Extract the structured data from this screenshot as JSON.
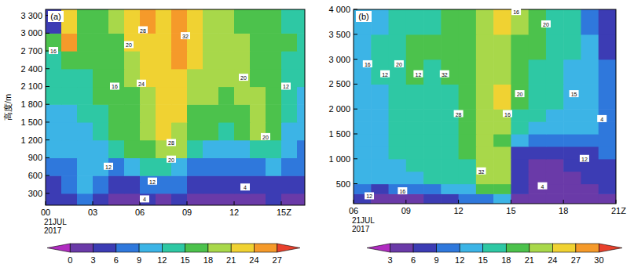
{
  "chart_data": [
    {
      "type": "heatmap",
      "title": "(a)",
      "y_label": "高度/m",
      "date_label": [
        "21JUL",
        "2017"
      ],
      "xlim": [
        0,
        16.5
      ],
      "ylim": [
        100,
        3400
      ],
      "xticks": [
        {
          "value": 0,
          "label": "00"
        },
        {
          "value": 3,
          "label": "03"
        },
        {
          "value": 6,
          "label": "06"
        },
        {
          "value": 9,
          "label": "09"
        },
        12,
        {
          "value": 15,
          "label": "15Z"
        }
      ],
      "yticks": [
        300,
        600,
        900,
        {
          "value": 1200,
          "label": "1 200"
        },
        {
          "value": 1500,
          "label": "1 500"
        },
        {
          "value": 1800,
          "label": "1 800"
        },
        {
          "value": 2100,
          "label": "2 100"
        },
        {
          "value": 2400,
          "label": "2 400"
        },
        {
          "value": 2700,
          "label": "2 700"
        },
        {
          "value": 3000,
          "label": "3 000"
        },
        {
          "value": 3300,
          "label": "3 300"
        }
      ],
      "x_edges": [
        0,
        1,
        2,
        3,
        4,
        5,
        6,
        7,
        8,
        9,
        10,
        11,
        12,
        13,
        14,
        15,
        16,
        16.5
      ],
      "y_edges": [
        100,
        300,
        600,
        900,
        1200,
        1500,
        1800,
        2100,
        2400,
        2700,
        3000,
        3400
      ],
      "cells": [
        [
          3,
          4,
          6,
          3,
          2,
          2,
          3,
          2,
          3,
          2,
          1,
          1,
          1,
          2,
          3,
          2,
          1
        ],
        [
          5,
          6,
          10,
          6,
          5,
          5,
          6,
          6,
          6,
          5,
          4,
          3,
          3,
          4,
          5,
          5,
          4
        ],
        [
          8,
          8,
          10,
          9,
          8,
          9,
          12,
          13,
          10,
          8,
          6,
          6,
          7,
          8,
          9,
          7,
          6
        ],
        [
          9,
          9,
          10,
          11,
          12,
          15,
          17,
          19,
          19,
          13,
          11,
          10,
          11,
          12,
          13,
          9,
          8
        ],
        [
          10,
          10,
          11,
          13,
          15,
          17,
          19,
          21,
          20,
          16,
          15,
          14,
          15,
          18,
          17,
          11,
          9
        ],
        [
          11,
          11,
          12,
          14,
          16,
          17,
          18,
          21,
          22,
          17,
          16,
          16,
          17,
          20,
          16,
          12,
          10
        ],
        [
          12,
          12,
          13,
          15,
          16,
          17,
          18,
          22,
          23,
          19,
          18,
          17,
          18,
          18,
          15,
          13,
          11
        ],
        [
          13,
          13,
          14,
          16,
          17,
          18,
          21,
          23,
          23,
          20,
          19,
          18,
          18,
          17,
          16,
          14,
          12
        ],
        [
          14,
          16,
          15,
          16,
          17,
          20,
          22,
          22,
          24,
          21,
          19,
          19,
          18,
          17,
          16,
          14,
          13
        ],
        [
          16,
          25,
          17,
          16,
          17,
          21,
          23,
          21,
          25,
          22,
          20,
          19,
          18,
          17,
          16,
          15,
          13
        ],
        [
          5,
          22,
          15,
          15,
          18,
          22,
          26,
          22,
          26,
          22,
          20,
          18,
          17,
          16,
          15,
          14,
          13
        ]
      ],
      "colors": [
        "#b02cc0",
        "#6a3aa8",
        "#3c3cb4",
        "#2f78dc",
        "#3cb4e6",
        "#2ec8a4",
        "#4cc24c",
        "#a8d84a",
        "#f0d232",
        "#f59a2a",
        "#e8402c",
        "#e8309a"
      ],
      "colorbar": {
        "range": [
          -3,
          30
        ],
        "ticks": [
          0,
          3,
          6,
          9,
          12,
          15,
          18,
          21,
          24,
          27
        ]
      },
      "annotations": [
        {
          "x": 0.5,
          "y": 2700,
          "text": "16"
        },
        {
          "x": 4.4,
          "y": 2100,
          "text": "16"
        },
        {
          "x": 6.2,
          "y": 3050,
          "text": "28"
        },
        {
          "x": 5.3,
          "y": 2800,
          "text": "20"
        },
        {
          "x": 6.1,
          "y": 2150,
          "text": "24"
        },
        {
          "x": 8.9,
          "y": 2950,
          "text": "32"
        },
        {
          "x": 8.0,
          "y": 1150,
          "text": "28"
        },
        {
          "x": 8.0,
          "y": 870,
          "text": "20"
        },
        {
          "x": 12.6,
          "y": 2250,
          "text": "20"
        },
        {
          "x": 14.0,
          "y": 1250,
          "text": "20"
        },
        {
          "x": 6.8,
          "y": 500,
          "text": "12"
        },
        {
          "x": 4.0,
          "y": 750,
          "text": "12"
        },
        {
          "x": 6.3,
          "y": 200,
          "text": "4"
        },
        {
          "x": 12.7,
          "y": 400,
          "text": "4"
        },
        {
          "x": 15.3,
          "y": 2100,
          "text": "12"
        }
      ]
    },
    {
      "type": "heatmap",
      "title": "(b)",
      "date_label": [
        "21JUL",
        "2017"
      ],
      "xlim": [
        6,
        21
      ],
      "ylim": [
        100,
        4000
      ],
      "xticks": [
        {
          "value": 6,
          "label": "06"
        },
        {
          "value": 9,
          "label": "09"
        },
        12,
        15,
        18,
        {
          "value": 21,
          "label": "21Z"
        }
      ],
      "yticks": [
        500,
        {
          "value": 1000,
          "label": "1 000"
        },
        {
          "value": 1500,
          "label": "1 500"
        },
        {
          "value": 2000,
          "label": "2 000"
        },
        {
          "value": 2500,
          "label": "2 500"
        },
        {
          "value": 3000,
          "label": "3 000"
        },
        {
          "value": 3500,
          "label": "3 500"
        },
        {
          "value": 4000,
          "label": "4 000"
        }
      ],
      "x_edges": [
        6,
        7,
        8,
        9,
        10,
        11,
        12,
        13,
        14,
        15,
        16,
        17,
        18,
        19,
        20,
        21
      ],
      "y_edges": [
        100,
        300,
        500,
        750,
        1000,
        1250,
        1500,
        1750,
        2000,
        2500,
        3000,
        3500,
        4000
      ],
      "cells": [
        [
          6,
          3,
          4,
          5,
          6,
          8,
          9,
          10,
          12,
          5,
          3,
          3,
          3,
          4,
          5
        ],
        [
          9,
          8,
          9,
          10,
          11,
          12,
          14,
          18,
          20,
          6,
          4,
          4,
          4,
          5,
          6
        ],
        [
          12,
          12,
          13,
          14,
          15,
          16,
          17,
          21,
          22,
          6,
          4,
          4,
          5,
          6,
          7
        ],
        [
          12,
          13,
          14,
          15,
          16,
          16,
          17,
          22,
          21,
          6,
          5,
          5,
          6,
          7,
          8
        ],
        [
          12,
          13,
          15,
          16,
          17,
          17,
          18,
          22,
          21,
          7,
          6,
          6,
          7,
          8,
          9
        ],
        [
          12,
          13,
          15,
          16,
          17,
          17,
          19,
          23,
          20,
          12,
          9,
          9,
          10,
          10,
          9
        ],
        [
          12,
          13,
          15,
          16,
          17,
          17,
          19,
          23,
          21,
          16,
          14,
          13,
          13,
          12,
          9
        ],
        [
          13,
          14,
          15,
          17,
          17,
          17,
          19,
          23,
          23,
          17,
          16,
          14,
          13,
          12,
          9
        ],
        [
          14,
          14,
          16,
          17,
          17,
          17,
          20,
          23,
          25,
          18,
          17,
          15,
          14,
          12,
          9
        ],
        [
          14,
          15,
          16,
          18,
          17,
          18,
          20,
          22,
          21,
          18,
          17,
          16,
          14,
          12,
          9
        ],
        [
          14,
          15,
          17,
          18,
          18,
          18,
          20,
          21,
          21,
          20,
          18,
          17,
          15,
          12,
          8
        ],
        [
          13,
          14,
          16,
          17,
          17,
          18,
          19,
          21,
          25,
          22,
          19,
          17,
          15,
          11,
          7
        ]
      ],
      "colors": [
        "#b02cc0",
        "#6a3aa8",
        "#3c3cb4",
        "#2f78dc",
        "#3cb4e6",
        "#2ec8a4",
        "#4cc24c",
        "#a8d84a",
        "#f0d232",
        "#f59a2a",
        "#e8402c",
        "#e8309a"
      ],
      "colorbar": {
        "range": [
          0,
          33
        ],
        "ticks": [
          3,
          6,
          9,
          12,
          15,
          18,
          21,
          24,
          27,
          30
        ]
      },
      "annotations": [
        {
          "x": 6.8,
          "y": 2900,
          "text": "16"
        },
        {
          "x": 7.8,
          "y": 2700,
          "text": "12"
        },
        {
          "x": 8.6,
          "y": 2900,
          "text": "20"
        },
        {
          "x": 9.7,
          "y": 2700,
          "text": "12"
        },
        {
          "x": 11.2,
          "y": 2700,
          "text": "32"
        },
        {
          "x": 12.0,
          "y": 1900,
          "text": "28"
        },
        {
          "x": 13.3,
          "y": 750,
          "text": "32"
        },
        {
          "x": 15.5,
          "y": 2300,
          "text": "20"
        },
        {
          "x": 14.8,
          "y": 1900,
          "text": "16"
        },
        {
          "x": 15.3,
          "y": 3950,
          "text": "16"
        },
        {
          "x": 17.0,
          "y": 3700,
          "text": "20"
        },
        {
          "x": 18.6,
          "y": 2300,
          "text": "15"
        },
        {
          "x": 19.2,
          "y": 1000,
          "text": "12"
        },
        {
          "x": 20.2,
          "y": 1800,
          "text": "4"
        },
        {
          "x": 8.8,
          "y": 350,
          "text": "16"
        },
        {
          "x": 6.9,
          "y": 250,
          "text": "12"
        },
        {
          "x": 16.8,
          "y": 450,
          "text": "4"
        }
      ]
    }
  ]
}
